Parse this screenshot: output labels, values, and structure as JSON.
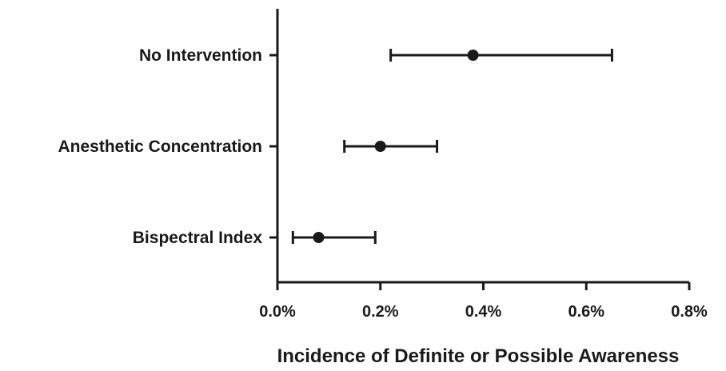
{
  "chart_data": {
    "type": "scatter",
    "orientation": "horizontal",
    "title": "",
    "xlabel": "Incidence of Definite or Possible Awareness",
    "ylabel": "",
    "xlim": [
      0,
      0.8
    ],
    "x_ticks": [
      0.0,
      0.2,
      0.4,
      0.6,
      0.8
    ],
    "x_tick_labels": [
      "0.0%",
      "0.2%",
      "0.4%",
      "0.6%",
      "0.8%"
    ],
    "grid": false,
    "categories": [
      "No Intervention",
      "Anesthetic Concentration",
      "Bispectral Index"
    ],
    "values": [
      0.38,
      0.2,
      0.08
    ],
    "ci_lower": [
      0.22,
      0.13,
      0.03
    ],
    "ci_upper": [
      0.65,
      0.31,
      0.19
    ],
    "color": "#1a1a1a"
  }
}
